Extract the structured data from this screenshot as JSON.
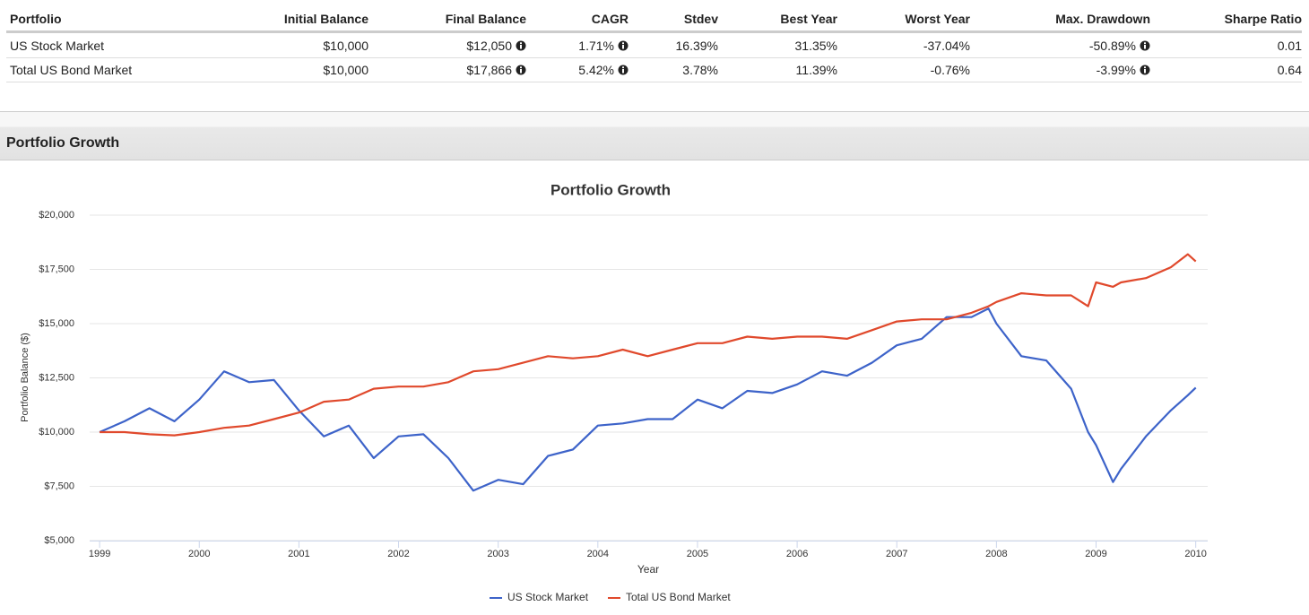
{
  "table": {
    "headers": [
      "Portfolio",
      "Initial Balance",
      "Final Balance",
      "CAGR",
      "Stdev",
      "Best Year",
      "Worst Year",
      "Max. Drawdown",
      "Sharpe Ratio"
    ],
    "rows": [
      [
        "US Stock Market",
        "$10,000",
        "$12,050",
        "1.71%",
        "16.39%",
        "31.35%",
        "-37.04%",
        "-50.89%",
        "0.01"
      ],
      [
        "Total US Bond Market",
        "$10,000",
        "$17,866",
        "5.42%",
        "3.78%",
        "11.39%",
        "-0.76%",
        "-3.99%",
        "0.64"
      ]
    ]
  },
  "section_title": "Portfolio Growth",
  "chart_data": {
    "type": "line",
    "title": "Portfolio Growth",
    "xlabel": "Year",
    "ylabel": "Portfolio Balance ($)",
    "x": [
      1999,
      1999.25,
      1999.5,
      1999.75,
      2000,
      2000.25,
      2000.5,
      2000.75,
      2001,
      2001.25,
      2001.5,
      2001.75,
      2002,
      2002.25,
      2002.5,
      2002.75,
      2003,
      2003.25,
      2003.5,
      2003.75,
      2004,
      2004.25,
      2004.5,
      2004.75,
      2005,
      2005.25,
      2005.5,
      2005.75,
      2006,
      2006.25,
      2006.5,
      2006.75,
      2007,
      2007.25,
      2007.5,
      2007.75,
      2007.92,
      2008,
      2008.25,
      2008.5,
      2008.75,
      2008.92,
      2009,
      2009.17,
      2009.25,
      2009.5,
      2009.75,
      2009.92,
      2010
    ],
    "series": [
      {
        "name": "US Stock Market",
        "color": "#3d63c9",
        "values": [
          10000,
          10500,
          11100,
          10500,
          11500,
          12800,
          12300,
          12400,
          11000,
          9800,
          10300,
          8800,
          9800,
          9900,
          8800,
          7300,
          7800,
          7600,
          8900,
          9200,
          10300,
          10400,
          10600,
          10600,
          11500,
          11100,
          11900,
          11800,
          12200,
          12800,
          12600,
          13200,
          14000,
          14300,
          15300,
          15300,
          15700,
          15000,
          13500,
          13300,
          12000,
          10000,
          9400,
          7700,
          8300,
          9800,
          11000,
          11700,
          12050
        ]
      },
      {
        "name": "Total US Bond Market",
        "color": "#e0492c",
        "values": [
          10000,
          10000,
          9900,
          9850,
          10000,
          10200,
          10300,
          10600,
          10900,
          11400,
          11500,
          12000,
          12100,
          12100,
          12300,
          12800,
          12900,
          13200,
          13500,
          13400,
          13500,
          13800,
          13500,
          13800,
          14100,
          14100,
          14400,
          14300,
          14400,
          14400,
          14300,
          14700,
          15100,
          15200,
          15200,
          15500,
          15800,
          16000,
          16400,
          16300,
          16300,
          15800,
          16900,
          16700,
          16900,
          17100,
          17600,
          18200,
          17866
        ]
      }
    ],
    "xlim": [
      1998.9,
      2010.12
    ],
    "xticks": [
      1999,
      2000,
      2001,
      2002,
      2003,
      2004,
      2005,
      2006,
      2007,
      2008,
      2009,
      2010
    ],
    "ylim": [
      5000,
      20000
    ],
    "yticks": [
      {
        "value": 5000,
        "label": "$5,000"
      },
      {
        "value": 7500,
        "label": "$7,500"
      },
      {
        "value": 10000,
        "label": "$10,000"
      },
      {
        "value": 12500,
        "label": "$12,500"
      },
      {
        "value": 15000,
        "label": "$15,000"
      },
      {
        "value": 17500,
        "label": "$17,500"
      },
      {
        "value": 20000,
        "label": "$20,000"
      }
    ],
    "grid": true,
    "legend": "bottom"
  }
}
